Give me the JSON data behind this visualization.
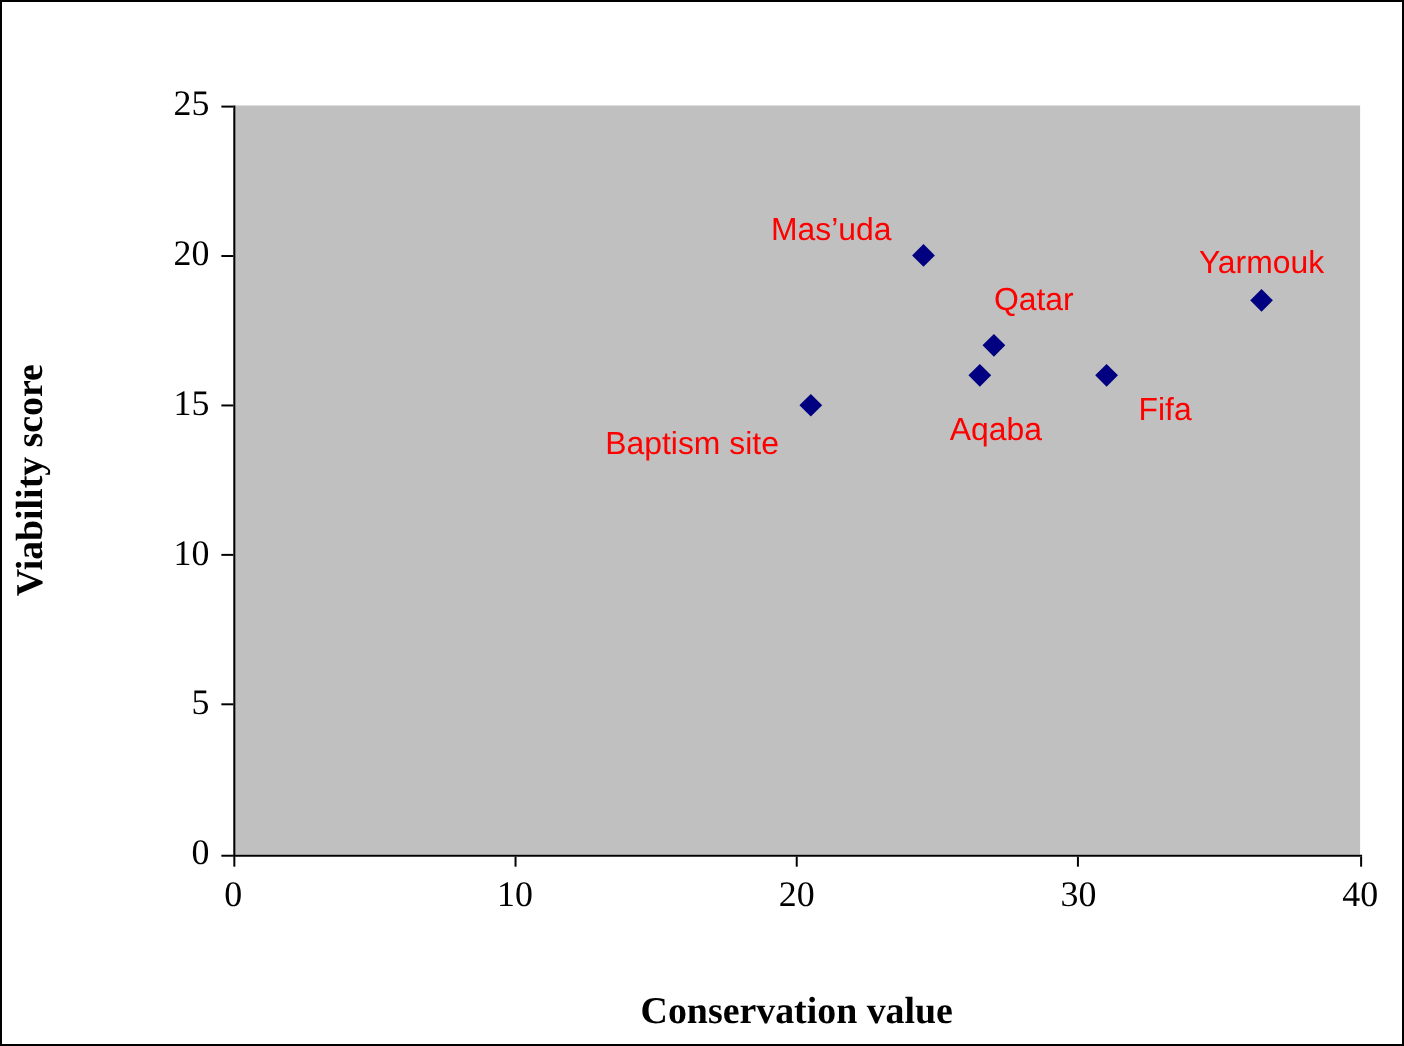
{
  "chart_data": {
    "type": "scatter",
    "xlabel": "Conservation value",
    "ylabel": "Viability score",
    "x": [
      20.5,
      24.5,
      27,
      26.5,
      31,
      36.5
    ],
    "values": [
      15,
      20,
      17,
      16,
      16,
      18.5
    ],
    "color": "#000080",
    "marker": "diamond",
    "grid": false,
    "legend": false,
    "xlim": [
      0,
      40
    ],
    "xticks": [
      0,
      10,
      20,
      30,
      40
    ],
    "ylim": [
      0,
      25
    ],
    "yticks": [
      0,
      5,
      10,
      15,
      20,
      25
    ],
    "annotations": [
      {
        "text": "Baptism site",
        "x": 20.5,
        "y": 15
      },
      {
        "text": "Mas’uda",
        "x": 24.5,
        "y": 20
      },
      {
        "text": "Qatar",
        "x": 27,
        "y": 17
      },
      {
        "text": "Aqaba",
        "x": 26.5,
        "y": 16
      },
      {
        "text": "Fifa",
        "x": 31,
        "y": 16
      },
      {
        "text": "Yarmouk",
        "x": 36.5,
        "y": 18.5
      }
    ]
  }
}
